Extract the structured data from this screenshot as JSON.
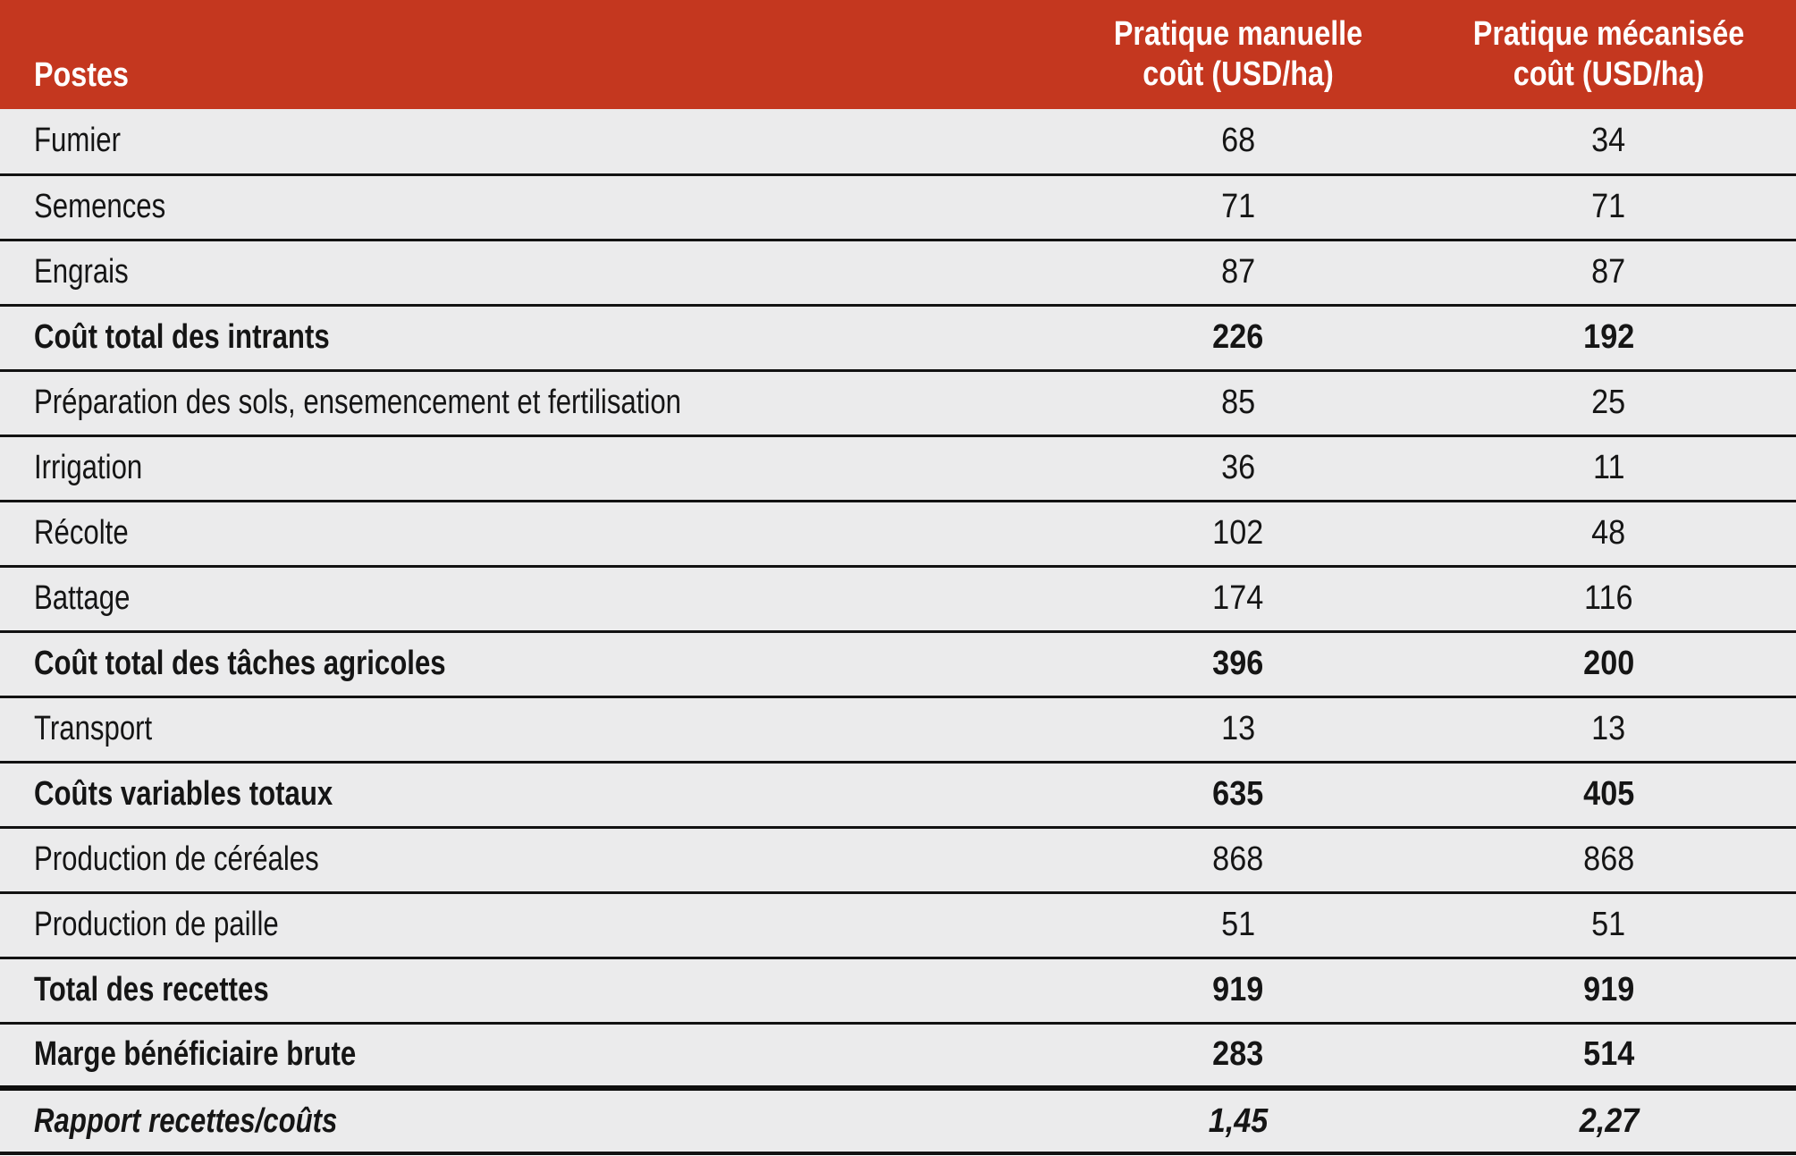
{
  "table": {
    "header": {
      "postes": "Postes",
      "manual_line1": "Pratique manuelle",
      "manual_line2": "coût (USD/ha)",
      "mech_line1": "Pratique mécanisée",
      "mech_line2": "coût (USD/ha)"
    },
    "rows": [
      {
        "label": "Fumier",
        "manual": "68",
        "mech": "34",
        "emphasis": "normal"
      },
      {
        "label": "Semences",
        "manual": "71",
        "mech": "71",
        "emphasis": "normal"
      },
      {
        "label": "Engrais",
        "manual": "87",
        "mech": "87",
        "emphasis": "normal"
      },
      {
        "label": "Coût total des intrants",
        "manual": "226",
        "mech": "192",
        "emphasis": "bold"
      },
      {
        "label": "Préparation des sols, ensemencement et fertilisation",
        "manual": "85",
        "mech": "25",
        "emphasis": "normal"
      },
      {
        "label": "Irrigation",
        "manual": "36",
        "mech": "11",
        "emphasis": "normal"
      },
      {
        "label": "Récolte",
        "manual": "102",
        "mech": "48",
        "emphasis": "normal"
      },
      {
        "label": "Battage",
        "manual": "174",
        "mech": "116",
        "emphasis": "normal"
      },
      {
        "label": "Coût total des tâches agricoles",
        "manual": "396",
        "mech": "200",
        "emphasis": "bold"
      },
      {
        "label": "Transport",
        "manual": "13",
        "mech": "13",
        "emphasis": "normal"
      },
      {
        "label": "Coûts variables totaux",
        "manual": "635",
        "mech": "405",
        "emphasis": "bold"
      },
      {
        "label": "Production de céréales",
        "manual": "868",
        "mech": "868",
        "emphasis": "normal"
      },
      {
        "label": "Production de paille",
        "manual": "51",
        "mech": "51",
        "emphasis": "normal"
      },
      {
        "label": "Total des recettes",
        "manual": "919",
        "mech": "919",
        "emphasis": "bold"
      },
      {
        "label": "Marge bénéficiaire brute",
        "manual": "283",
        "mech": "514",
        "emphasis": "bold"
      },
      {
        "label": "Rapport recettes/coûts",
        "manual": "1,45",
        "mech": "2,27",
        "emphasis": "bold-italic",
        "thick_top_border": true
      }
    ],
    "colors": {
      "header_bg": "#c4371f",
      "header_text": "#ffffff",
      "row_bg": "#ebebec",
      "body_text": "#151515",
      "border": "#121212"
    }
  },
  "chart_data": {
    "type": "table",
    "title": "",
    "columns": [
      "Postes",
      "Pratique manuelle coût (USD/ha)",
      "Pratique mécanisée coût (USD/ha)"
    ],
    "rows": [
      [
        "Fumier",
        68,
        34
      ],
      [
        "Semences",
        71,
        71
      ],
      [
        "Engrais",
        87,
        87
      ],
      [
        "Coût total des intrants",
        226,
        192
      ],
      [
        "Préparation des sols, ensemencement et fertilisation",
        85,
        25
      ],
      [
        "Irrigation",
        36,
        11
      ],
      [
        "Récolte",
        102,
        48
      ],
      [
        "Battage",
        174,
        116
      ],
      [
        "Coût total des tâches agricoles",
        396,
        200
      ],
      [
        "Transport",
        13,
        13
      ],
      [
        "Coûts variables totaux",
        635,
        405
      ],
      [
        "Production de céréales",
        868,
        868
      ],
      [
        "Production de paille",
        51,
        51
      ],
      [
        "Total des recettes",
        919,
        919
      ],
      [
        "Marge bénéficiaire brute",
        283,
        514
      ],
      [
        "Rapport recettes/coûts",
        "1,45",
        "2,27"
      ]
    ]
  }
}
